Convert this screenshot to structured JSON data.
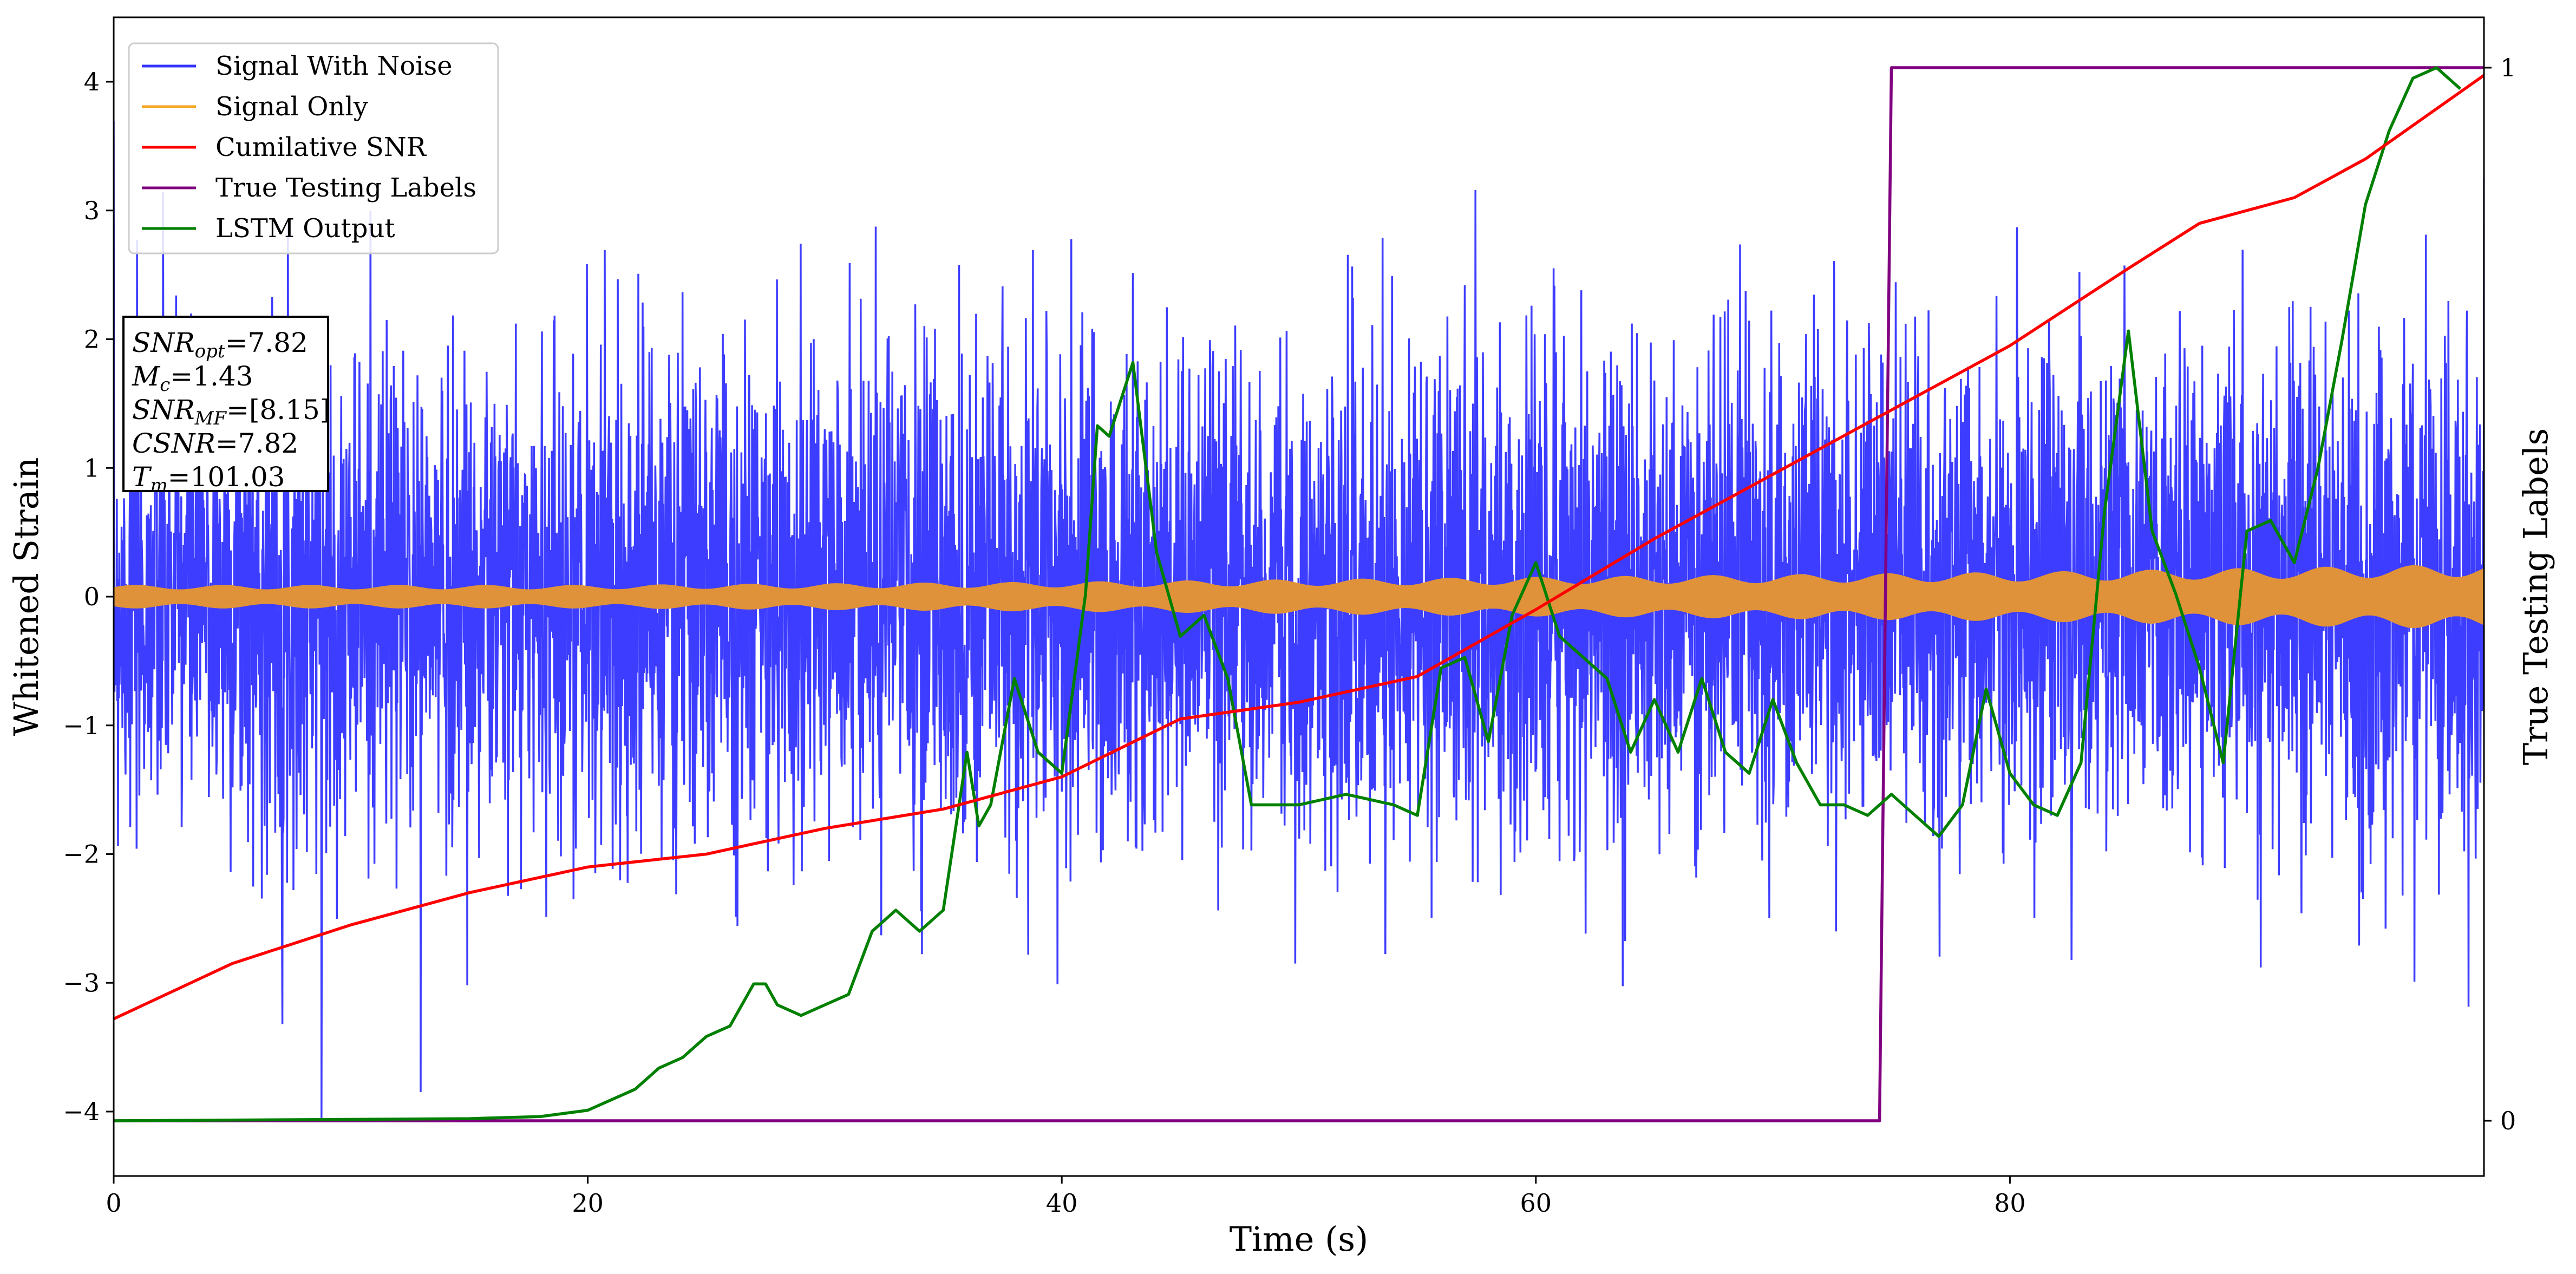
{
  "chart_data": {
    "type": "line",
    "xlabel": "Time (s)",
    "ylabel": "Whitened Strain",
    "y2label": "True Testing Labels",
    "xlim": [
      0,
      100
    ],
    "ylim": [
      -4.5,
      4.5
    ],
    "y2lim": [
      -0.05,
      1.05
    ],
    "xticks": [
      "0",
      "20",
      "40",
      "60",
      "80"
    ],
    "yticks": [
      "−4",
      "−3",
      "−2",
      "−1",
      "0",
      "1",
      "2",
      "3",
      "4"
    ],
    "y2ticks": [
      "0",
      "1"
    ],
    "grid": false,
    "legend_position": "top-left",
    "legend": [
      {
        "label": "Signal With Noise",
        "color": "#3333ff"
      },
      {
        "label": "Signal Only",
        "color": "#f5a623"
      },
      {
        "label": "Cumilative SNR",
        "color": "#ff0000"
      },
      {
        "label": "True Testing Labels",
        "color": "#800080"
      },
      {
        "label": "LSTM Output",
        "color": "#008000"
      }
    ],
    "annotation": [
      {
        "base": "SNR",
        "sub": "opt",
        "text": "=7.82"
      },
      {
        "base": "M",
        "sub": "c",
        "text": "=1.43"
      },
      {
        "base": "SNR",
        "sub": "MF",
        "text": "=[8.15]"
      },
      {
        "base": "CSNR",
        "sub": "",
        "text": "=7.82"
      },
      {
        "base": "T",
        "sub": "m",
        "text": "=101.03"
      }
    ],
    "series": [
      {
        "name": "Signal With Noise",
        "axis": "left",
        "color": "#3333ff",
        "noise_envelope": {
          "typical_peak": [
            -2.0,
            2.5
          ],
          "extreme": [
            -4.05,
            4.1
          ]
        }
      },
      {
        "name": "Signal Only",
        "axis": "left",
        "color": "#e0923a",
        "x": [
          0,
          20,
          40,
          60,
          80,
          100
        ],
        "amplitude": [
          0.07,
          0.07,
          0.09,
          0.12,
          0.15,
          0.2
        ]
      },
      {
        "name": "Cumilative SNR",
        "axis": "left",
        "color": "#ff0000",
        "x": [
          0,
          5,
          10,
          15,
          20,
          25,
          30,
          35,
          40,
          45,
          50,
          55,
          60,
          65,
          70,
          75,
          80,
          85,
          88,
          92,
          95,
          100
        ],
        "y": [
          -3.28,
          -2.85,
          -2.55,
          -2.3,
          -2.1,
          -2.0,
          -1.8,
          -1.65,
          -1.4,
          -0.95,
          -0.82,
          -0.62,
          -0.1,
          0.45,
          0.95,
          1.45,
          1.95,
          2.55,
          2.9,
          3.1,
          3.4,
          4.05
        ]
      },
      {
        "name": "True Testing Labels",
        "axis": "right",
        "color": "#800080",
        "x": [
          0,
          74.5,
          75.0,
          100
        ],
        "y": [
          0,
          0,
          1,
          1
        ]
      },
      {
        "name": "LSTM Output",
        "axis": "right",
        "color": "#008000",
        "x": [
          0,
          15,
          18,
          20,
          21,
          22,
          23,
          24,
          25,
          26,
          27,
          27.5,
          28,
          29,
          30,
          31,
          32,
          33,
          34,
          35,
          36,
          36.5,
          37,
          38,
          39,
          40,
          41,
          41.5,
          42,
          43,
          44,
          45,
          46,
          47,
          48,
          49,
          50,
          52,
          54,
          55,
          56,
          57,
          58,
          59,
          60,
          61,
          62,
          63,
          64,
          65,
          66,
          67,
          68,
          69,
          70,
          71,
          72,
          73,
          74,
          75,
          76,
          77,
          78,
          79,
          80,
          81,
          82,
          83,
          84,
          85,
          86,
          87,
          88,
          89,
          90,
          91,
          92,
          93,
          94,
          95,
          96,
          97,
          98,
          99
        ],
        "y": [
          0,
          0.002,
          0.004,
          0.01,
          0.02,
          0.03,
          0.05,
          0.06,
          0.08,
          0.09,
          0.13,
          0.13,
          0.11,
          0.1,
          0.11,
          0.12,
          0.18,
          0.2,
          0.18,
          0.2,
          0.35,
          0.28,
          0.3,
          0.42,
          0.35,
          0.33,
          0.5,
          0.66,
          0.65,
          0.72,
          0.54,
          0.46,
          0.48,
          0.42,
          0.3,
          0.3,
          0.3,
          0.31,
          0.3,
          0.29,
          0.43,
          0.44,
          0.36,
          0.48,
          0.53,
          0.46,
          0.44,
          0.42,
          0.35,
          0.4,
          0.35,
          0.42,
          0.35,
          0.33,
          0.4,
          0.34,
          0.3,
          0.3,
          0.29,
          0.31,
          0.29,
          0.27,
          0.3,
          0.41,
          0.33,
          0.3,
          0.29,
          0.34,
          0.58,
          0.75,
          0.56,
          0.5,
          0.43,
          0.34,
          0.56,
          0.57,
          0.53,
          0.62,
          0.74,
          0.87,
          0.94,
          0.99,
          1.0,
          0.98
        ]
      }
    ]
  }
}
